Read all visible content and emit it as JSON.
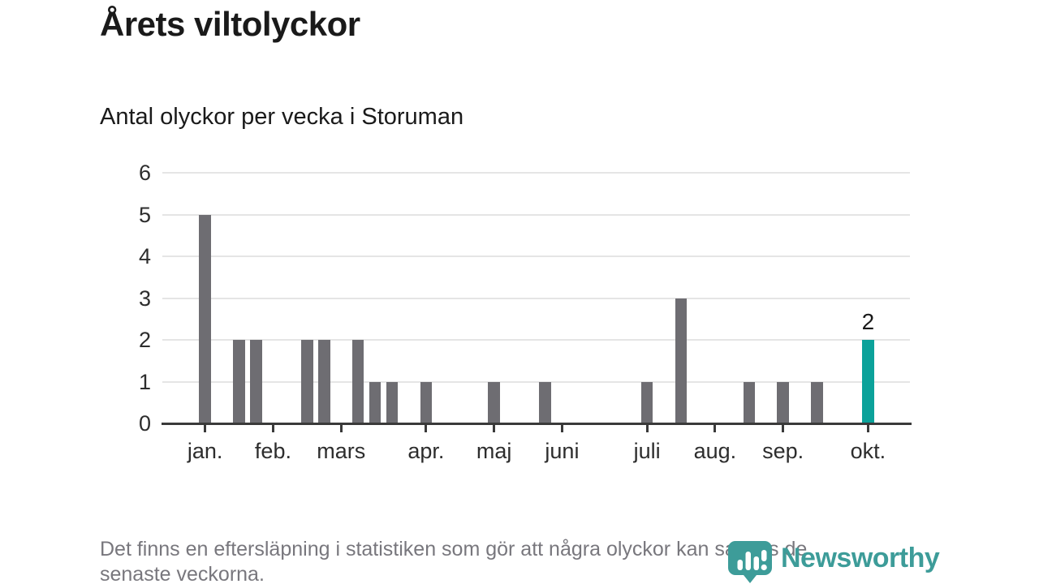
{
  "title": "Årets viltolyckor",
  "subtitle": "Antal olyckor per vecka i Storuman",
  "footer": {
    "lines": [
      "Det finns en eftersläpning i statistiken som gör att några olyckor kan saknas de",
      "senaste veckorna."
    ]
  },
  "logo": {
    "name": "Newsworthy"
  },
  "chart_data": {
    "type": "bar",
    "title": "Årets viltolyckor",
    "subtitle": "Antal olyckor per vecka i Storuman",
    "ylabel": "",
    "xlabel": "",
    "ylim": [
      0,
      6
    ],
    "y_ticks": [
      0,
      1,
      2,
      3,
      4,
      5,
      6
    ],
    "grid": "horizontal",
    "x_unit": "vecka",
    "weeks": [
      5,
      0,
      2,
      2,
      0,
      0,
      2,
      2,
      0,
      2,
      1,
      1,
      0,
      1,
      0,
      0,
      0,
      1,
      0,
      0,
      1,
      0,
      0,
      0,
      0,
      0,
      1,
      0,
      3,
      0,
      0,
      0,
      1,
      0,
      1,
      0,
      1,
      0,
      0,
      2
    ],
    "month_ticks": [
      {
        "label": "jan.",
        "week": 0
      },
      {
        "label": "feb.",
        "week": 4
      },
      {
        "label": "mars",
        "week": 8
      },
      {
        "label": "apr.",
        "week": 13
      },
      {
        "label": "maj",
        "week": 17
      },
      {
        "label": "juni",
        "week": 21
      },
      {
        "label": "juli",
        "week": 26
      },
      {
        "label": "aug.",
        "week": 30
      },
      {
        "label": "sep.",
        "week": 34
      },
      {
        "label": "okt.",
        "week": 39
      }
    ],
    "highlight_week": 39,
    "highlight_label": "2",
    "colors": {
      "bar": "#6e6d72",
      "highlight": "#0ba29a",
      "grid": "#e5e5e5",
      "axis": "#3a3a3a",
      "tick_label": "#2d2d2d",
      "value_label": "#1a1a1a",
      "title": "#1a1a1a",
      "footer_text": "#78777d",
      "logo": "#3d9c99"
    }
  }
}
